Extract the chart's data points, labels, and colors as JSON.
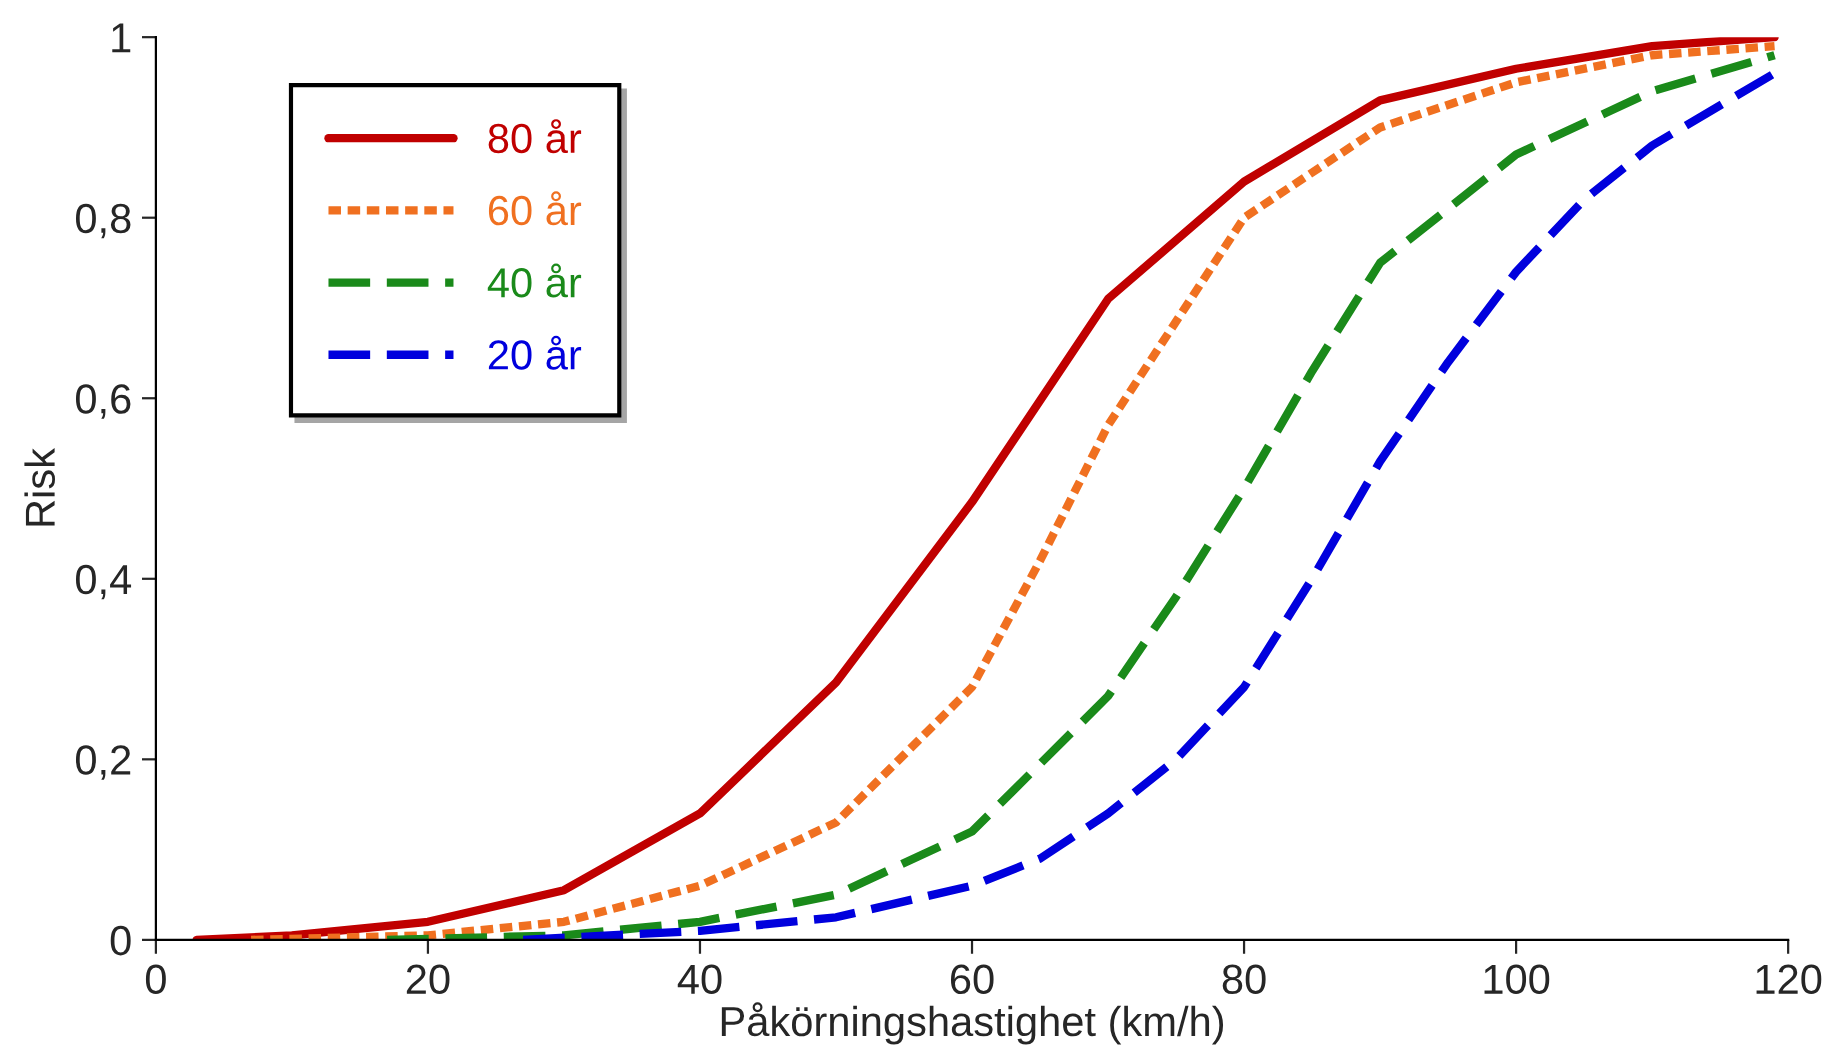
{
  "chart_data": {
    "type": "line",
    "xlabel": "Påkörningshastighet (km/h)",
    "ylabel": "Risk",
    "xlim": [
      0,
      120
    ],
    "xticks": [
      0,
      20,
      40,
      60,
      80,
      100,
      120
    ],
    "ylim": [
      0,
      1
    ],
    "yticks": [
      0,
      {
        "value": 0.2,
        "label": "0,2"
      },
      {
        "value": 0.4,
        "label": "0,4"
      },
      {
        "value": 0.6,
        "label": "0,6"
      },
      {
        "value": 0.8,
        "label": "0,8"
      },
      1
    ],
    "grid": false,
    "legend": "top left",
    "marker": "none",
    "series": [
      {
        "name": "80 år",
        "color": "#c00000",
        "line_style": "solid",
        "x": [
          3,
          10,
          20,
          30,
          40,
          50,
          60,
          70,
          80,
          90,
          100,
          110,
          119
        ],
        "values": [
          0,
          0.005,
          0.02,
          0.055,
          0.14,
          0.285,
          0.485,
          0.71,
          0.84,
          0.93,
          0.965,
          0.99,
          1.0
        ]
      },
      {
        "name": "60 år",
        "color": "#f07020",
        "line_style": "dotted",
        "x": [
          7,
          20,
          30,
          40,
          50,
          60,
          65,
          70,
          80,
          90,
          100,
          110,
          119
        ],
        "values": [
          0,
          0.005,
          0.02,
          0.06,
          0.13,
          0.28,
          0.42,
          0.57,
          0.8,
          0.9,
          0.95,
          0.98,
          0.99
        ]
      },
      {
        "name": "40 år",
        "color": "#1a8a1a",
        "line_style": "dashed",
        "x": [
          17,
          30,
          40,
          50,
          60,
          70,
          75,
          80,
          85,
          90,
          100,
          110,
          119
        ],
        "values": [
          0,
          0.005,
          0.02,
          0.05,
          0.12,
          0.27,
          0.38,
          0.5,
          0.63,
          0.75,
          0.87,
          0.94,
          0.98
        ]
      },
      {
        "name": "20 år",
        "color": "#0000dd",
        "line_style": "dashed",
        "x": [
          27,
          40,
          50,
          60,
          65,
          70,
          75,
          80,
          85,
          90,
          95,
          100,
          105,
          110,
          119
        ],
        "values": [
          0,
          0.01,
          0.025,
          0.06,
          0.09,
          0.14,
          0.2,
          0.28,
          0.4,
          0.53,
          0.64,
          0.74,
          0.82,
          0.88,
          0.96
        ]
      }
    ]
  }
}
